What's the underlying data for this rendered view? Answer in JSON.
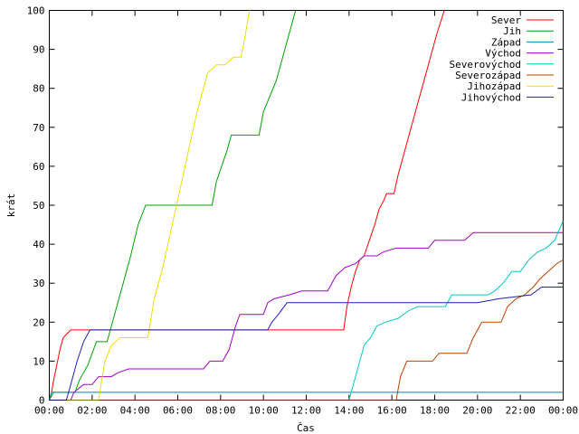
{
  "chart_data": {
    "type": "line",
    "title": "",
    "xlabel": "Čas",
    "ylabel": "krát",
    "xlim": [
      0,
      24
    ],
    "ylim": [
      0,
      100
    ],
    "grid": false,
    "legend_placement": "top-right",
    "x_ticks": [
      {
        "value": 0,
        "label": "00:00"
      },
      {
        "value": 2,
        "label": "02:00"
      },
      {
        "value": 4,
        "label": "04:00"
      },
      {
        "value": 6,
        "label": "06:00"
      },
      {
        "value": 8,
        "label": "08:00"
      },
      {
        "value": 10,
        "label": "10:00"
      },
      {
        "value": 12,
        "label": "12:00"
      },
      {
        "value": 14,
        "label": "14:00"
      },
      {
        "value": 16,
        "label": "16:00"
      },
      {
        "value": 18,
        "label": "18:00"
      },
      {
        "value": 20,
        "label": "20:00"
      },
      {
        "value": 22,
        "label": "22:00"
      },
      {
        "value": 24,
        "label": "00:00"
      }
    ],
    "y_ticks": [
      0,
      10,
      20,
      30,
      40,
      50,
      60,
      70,
      80,
      90,
      100
    ],
    "series": [
      {
        "name": "Sever",
        "color": "#ff0000",
        "points": [
          [
            0,
            0
          ],
          [
            0.1,
            2
          ],
          [
            0.2,
            5
          ],
          [
            0.35,
            9
          ],
          [
            0.5,
            13
          ],
          [
            0.65,
            16
          ],
          [
            1.0,
            18
          ],
          [
            6,
            18
          ],
          [
            12,
            18
          ],
          [
            13.75,
            18
          ],
          [
            13.9,
            24
          ],
          [
            14.1,
            29
          ],
          [
            14.3,
            33
          ],
          [
            14.5,
            36
          ],
          [
            14.7,
            37
          ],
          [
            14.95,
            41
          ],
          [
            15.2,
            45
          ],
          [
            15.4,
            49
          ],
          [
            15.6,
            51
          ],
          [
            15.75,
            53
          ],
          [
            16.1,
            53
          ],
          [
            16.3,
            58
          ],
          [
            16.6,
            64
          ],
          [
            16.9,
            70
          ],
          [
            17.2,
            76
          ],
          [
            17.5,
            82
          ],
          [
            17.8,
            88
          ],
          [
            18.1,
            94
          ],
          [
            18.45,
            100
          ]
        ]
      },
      {
        "name": "Jih",
        "color": "#00a000",
        "points": [
          [
            0,
            0
          ],
          [
            0.2,
            2
          ],
          [
            1.2,
            2
          ],
          [
            1.4,
            5
          ],
          [
            1.8,
            9
          ],
          [
            2.2,
            15
          ],
          [
            2.7,
            15
          ],
          [
            3.0,
            21
          ],
          [
            3.4,
            29
          ],
          [
            3.8,
            37
          ],
          [
            4.15,
            45
          ],
          [
            4.5,
            50
          ],
          [
            7.6,
            50
          ],
          [
            7.8,
            56
          ],
          [
            8.05,
            60
          ],
          [
            8.3,
            64
          ],
          [
            8.5,
            68
          ],
          [
            9.8,
            68
          ],
          [
            10.0,
            74
          ],
          [
            10.3,
            78
          ],
          [
            10.6,
            82
          ],
          [
            10.9,
            88
          ],
          [
            11.2,
            94
          ],
          [
            11.5,
            100
          ]
        ]
      },
      {
        "name": "Západ",
        "color": "#0088a8",
        "points": [
          [
            0,
            0
          ],
          [
            0.1,
            2
          ],
          [
            6,
            2
          ],
          [
            12,
            2
          ],
          [
            16,
            2
          ],
          [
            20,
            2
          ],
          [
            24,
            2
          ]
        ]
      },
      {
        "name": "Východ",
        "color": "#a000d0",
        "points": [
          [
            0,
            0
          ],
          [
            1.0,
            0
          ],
          [
            1.15,
            2
          ],
          [
            1.6,
            4
          ],
          [
            2.0,
            4
          ],
          [
            2.3,
            6
          ],
          [
            2.9,
            6
          ],
          [
            3.2,
            7
          ],
          [
            3.7,
            8
          ],
          [
            7.2,
            8
          ],
          [
            7.5,
            10
          ],
          [
            8.1,
            10
          ],
          [
            8.4,
            13
          ],
          [
            8.7,
            19
          ],
          [
            8.9,
            22
          ],
          [
            10.0,
            22
          ],
          [
            10.2,
            25
          ],
          [
            10.5,
            26
          ],
          [
            11.2,
            27
          ],
          [
            11.8,
            28
          ],
          [
            13.0,
            28
          ],
          [
            13.4,
            32
          ],
          [
            13.8,
            34
          ],
          [
            14.3,
            35
          ],
          [
            14.7,
            37
          ],
          [
            15.3,
            37
          ],
          [
            15.6,
            38
          ],
          [
            16.2,
            39
          ],
          [
            17.7,
            39
          ],
          [
            18.0,
            41
          ],
          [
            19.4,
            41
          ],
          [
            19.8,
            43
          ],
          [
            24,
            43
          ]
        ]
      },
      {
        "name": "Severovýchod",
        "color": "#00c8c8",
        "points": [
          [
            0,
            0
          ],
          [
            14.0,
            0
          ],
          [
            14.2,
            4
          ],
          [
            14.5,
            10
          ],
          [
            14.7,
            14
          ],
          [
            15.0,
            16
          ],
          [
            15.3,
            19
          ],
          [
            15.7,
            20
          ],
          [
            16.3,
            21
          ],
          [
            16.8,
            23
          ],
          [
            17.2,
            24
          ],
          [
            18.5,
            24
          ],
          [
            18.8,
            27
          ],
          [
            20.5,
            27
          ],
          [
            20.8,
            28
          ],
          [
            21.2,
            30
          ],
          [
            21.6,
            33
          ],
          [
            22.0,
            33
          ],
          [
            22.4,
            36
          ],
          [
            22.8,
            38
          ],
          [
            23.2,
            39
          ],
          [
            23.6,
            41
          ],
          [
            24.0,
            46
          ]
        ]
      },
      {
        "name": "Severozápad",
        "color": "#c04000",
        "points": [
          [
            0,
            0
          ],
          [
            16.2,
            0
          ],
          [
            16.4,
            6
          ],
          [
            16.7,
            10
          ],
          [
            17.9,
            10
          ],
          [
            18.2,
            12
          ],
          [
            19.5,
            12
          ],
          [
            19.8,
            16
          ],
          [
            20.0,
            18
          ],
          [
            20.2,
            20
          ],
          [
            21.1,
            20
          ],
          [
            21.4,
            24
          ],
          [
            21.8,
            26
          ],
          [
            22.2,
            27
          ],
          [
            22.6,
            29
          ],
          [
            22.9,
            31
          ],
          [
            23.3,
            33
          ],
          [
            23.7,
            35
          ],
          [
            24.0,
            36
          ]
        ]
      },
      {
        "name": "Jihozápad",
        "color": "#f0e000",
        "points": [
          [
            0,
            0
          ],
          [
            2.3,
            0
          ],
          [
            2.6,
            10
          ],
          [
            2.9,
            14
          ],
          [
            3.3,
            16
          ],
          [
            4.6,
            16
          ],
          [
            4.9,
            26
          ],
          [
            5.3,
            34
          ],
          [
            5.7,
            44
          ],
          [
            6.1,
            54
          ],
          [
            6.5,
            64
          ],
          [
            6.9,
            74
          ],
          [
            7.4,
            84
          ],
          [
            7.8,
            86
          ],
          [
            8.2,
            86
          ],
          [
            8.6,
            88
          ],
          [
            8.95,
            88
          ],
          [
            9.1,
            92
          ],
          [
            9.35,
            100
          ]
        ]
      },
      {
        "name": "Jihovýchod",
        "color": "#2020b0",
        "points": [
          [
            0,
            0
          ],
          [
            0.8,
            0
          ],
          [
            1.0,
            4
          ],
          [
            1.3,
            10
          ],
          [
            1.6,
            15
          ],
          [
            1.9,
            18
          ],
          [
            7,
            18
          ],
          [
            10.2,
            18
          ],
          [
            10.4,
            20
          ],
          [
            10.7,
            22
          ],
          [
            11.1,
            25
          ],
          [
            13.0,
            25
          ],
          [
            16.0,
            25
          ],
          [
            20.0,
            25
          ],
          [
            21.0,
            26
          ],
          [
            22.5,
            27
          ],
          [
            23.0,
            29
          ],
          [
            24,
            29
          ]
        ]
      }
    ]
  }
}
